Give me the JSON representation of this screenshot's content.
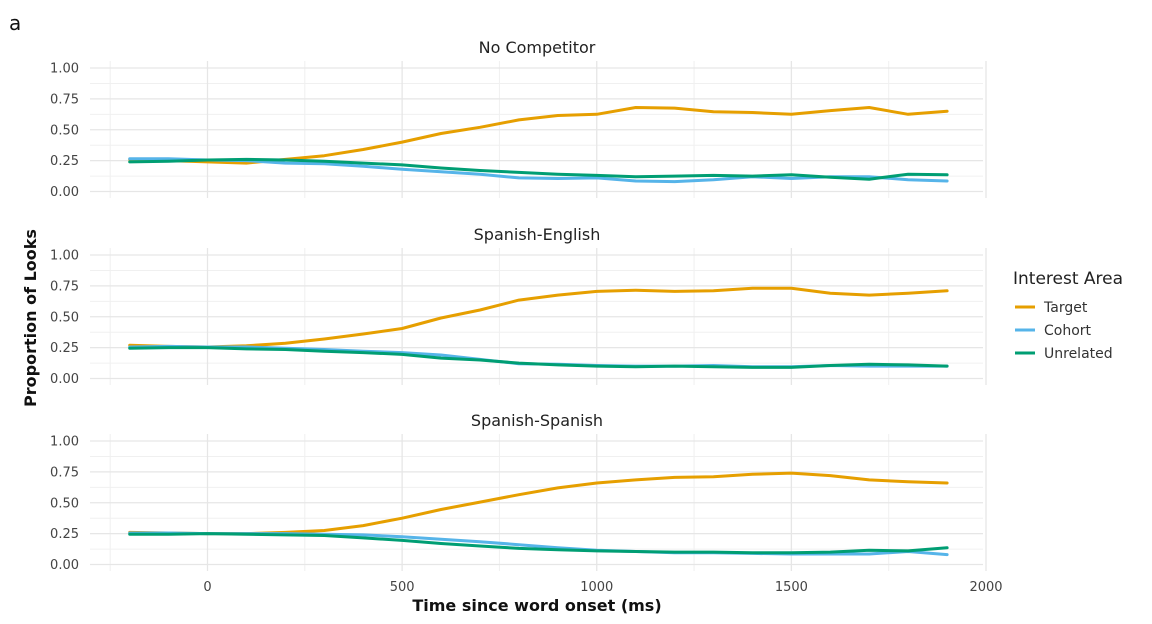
{
  "figure_tag": "a",
  "chart_data": {
    "type": "line",
    "xlabel": "Time since word onset (ms)",
    "ylabel": "Proportion of Looks",
    "xlim": [
      -300,
      2000
    ],
    "ylim": [
      0,
      1.05
    ],
    "x_ticks": [
      0,
      500,
      1000,
      1500,
      2000
    ],
    "y_ticks": [
      "0.00",
      "0.25",
      "0.50",
      "0.75",
      "1.00"
    ],
    "grid": true,
    "legend": {
      "title": "Interest Area",
      "placement": "right",
      "entries": [
        "Target",
        "Cohort",
        "Unrelated"
      ]
    },
    "colors": {
      "Target": "#E69F00",
      "Cohort": "#56B4E9",
      "Unrelated": "#009E73"
    },
    "x": [
      -200,
      -100,
      0,
      100,
      200,
      300,
      400,
      500,
      600,
      700,
      800,
      900,
      1000,
      1100,
      1200,
      1300,
      1400,
      1500,
      1600,
      1700,
      1800,
      1900
    ],
    "panels": [
      {
        "title": "No Competitor",
        "series": [
          {
            "name": "Target",
            "values": [
              0.26,
              0.25,
              0.24,
              0.23,
              0.26,
              0.29,
              0.34,
              0.4,
              0.47,
              0.52,
              0.58,
              0.615,
              0.625,
              0.68,
              0.675,
              0.645,
              0.64,
              0.625,
              0.655,
              0.68,
              0.625,
              0.65
            ]
          },
          {
            "name": "Cohort",
            "values": [
              0.265,
              0.265,
              0.255,
              0.25,
              0.23,
              0.225,
              0.205,
              0.18,
              0.16,
              0.14,
              0.11,
              0.105,
              0.11,
              0.085,
              0.08,
              0.095,
              0.12,
              0.105,
              0.12,
              0.12,
              0.095,
              0.085
            ]
          },
          {
            "name": "Unrelated",
            "values": [
              0.24,
              0.245,
              0.255,
              0.26,
              0.255,
              0.245,
              0.23,
              0.215,
              0.19,
              0.17,
              0.155,
              0.14,
              0.13,
              0.12,
              0.125,
              0.13,
              0.125,
              0.135,
              0.115,
              0.1,
              0.14,
              0.135
            ]
          }
        ]
      },
      {
        "title": "Spanish-English",
        "series": [
          {
            "name": "Target",
            "values": [
              0.27,
              0.26,
              0.255,
              0.265,
              0.285,
              0.32,
              0.36,
              0.405,
              0.49,
              0.555,
              0.635,
              0.675,
              0.705,
              0.715,
              0.705,
              0.71,
              0.73,
              0.73,
              0.69,
              0.675,
              0.69,
              0.71
            ]
          },
          {
            "name": "Cohort",
            "values": [
              0.255,
              0.26,
              0.255,
              0.255,
              0.245,
              0.235,
              0.22,
              0.21,
              0.19,
              0.155,
              0.12,
              0.115,
              0.105,
              0.1,
              0.1,
              0.105,
              0.095,
              0.095,
              0.105,
              0.1,
              0.1,
              0.1
            ]
          },
          {
            "name": "Unrelated",
            "values": [
              0.245,
              0.25,
              0.25,
              0.24,
              0.235,
              0.22,
              0.21,
              0.195,
              0.165,
              0.15,
              0.125,
              0.11,
              0.1,
              0.095,
              0.1,
              0.095,
              0.09,
              0.09,
              0.105,
              0.115,
              0.11,
              0.1
            ]
          }
        ]
      },
      {
        "title": "Spanish-Spanish",
        "series": [
          {
            "name": "Target",
            "values": [
              0.26,
              0.255,
              0.25,
              0.25,
              0.26,
              0.275,
              0.315,
              0.375,
              0.445,
              0.505,
              0.565,
              0.62,
              0.66,
              0.685,
              0.705,
              0.71,
              0.73,
              0.74,
              0.72,
              0.685,
              0.67,
              0.66
            ]
          },
          {
            "name": "Cohort",
            "values": [
              0.255,
              0.255,
              0.25,
              0.25,
              0.25,
              0.245,
              0.24,
              0.225,
              0.205,
              0.185,
              0.16,
              0.135,
              0.115,
              0.105,
              0.095,
              0.095,
              0.09,
              0.085,
              0.085,
              0.085,
              0.105,
              0.08
            ]
          },
          {
            "name": "Unrelated",
            "values": [
              0.245,
              0.245,
              0.25,
              0.245,
              0.24,
              0.235,
              0.215,
              0.195,
              0.17,
              0.15,
              0.13,
              0.12,
              0.11,
              0.105,
              0.1,
              0.1,
              0.095,
              0.095,
              0.1,
              0.115,
              0.11,
              0.135
            ]
          }
        ]
      }
    ]
  }
}
